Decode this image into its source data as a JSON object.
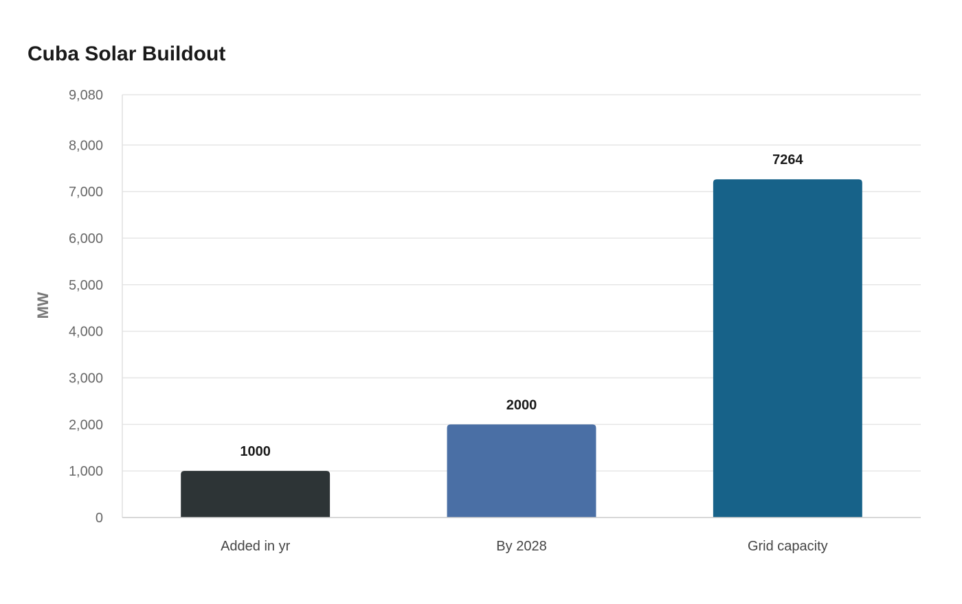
{
  "chart_data": {
    "type": "bar",
    "title": "Cuba Solar Buildout",
    "xlabel": "",
    "ylabel": "MW",
    "categories": [
      "Added in yr",
      "By 2028",
      "Grid capacity"
    ],
    "values": [
      1000,
      2000,
      7264
    ],
    "value_labels": [
      "1000",
      "2000",
      "7264"
    ],
    "colors": [
      "#2d3436",
      "#4a6fa5",
      "#176289"
    ],
    "ylim": [
      0,
      9080
    ],
    "yticks": [
      0,
      1000,
      2000,
      3000,
      4000,
      5000,
      6000,
      7000,
      8000,
      9080
    ],
    "ytick_labels": [
      "0",
      "1,000",
      "2,000",
      "3,000",
      "4,000",
      "5,000",
      "6,000",
      "7,000",
      "8,000",
      "9,080"
    ],
    "grid": true,
    "legend": "none"
  }
}
